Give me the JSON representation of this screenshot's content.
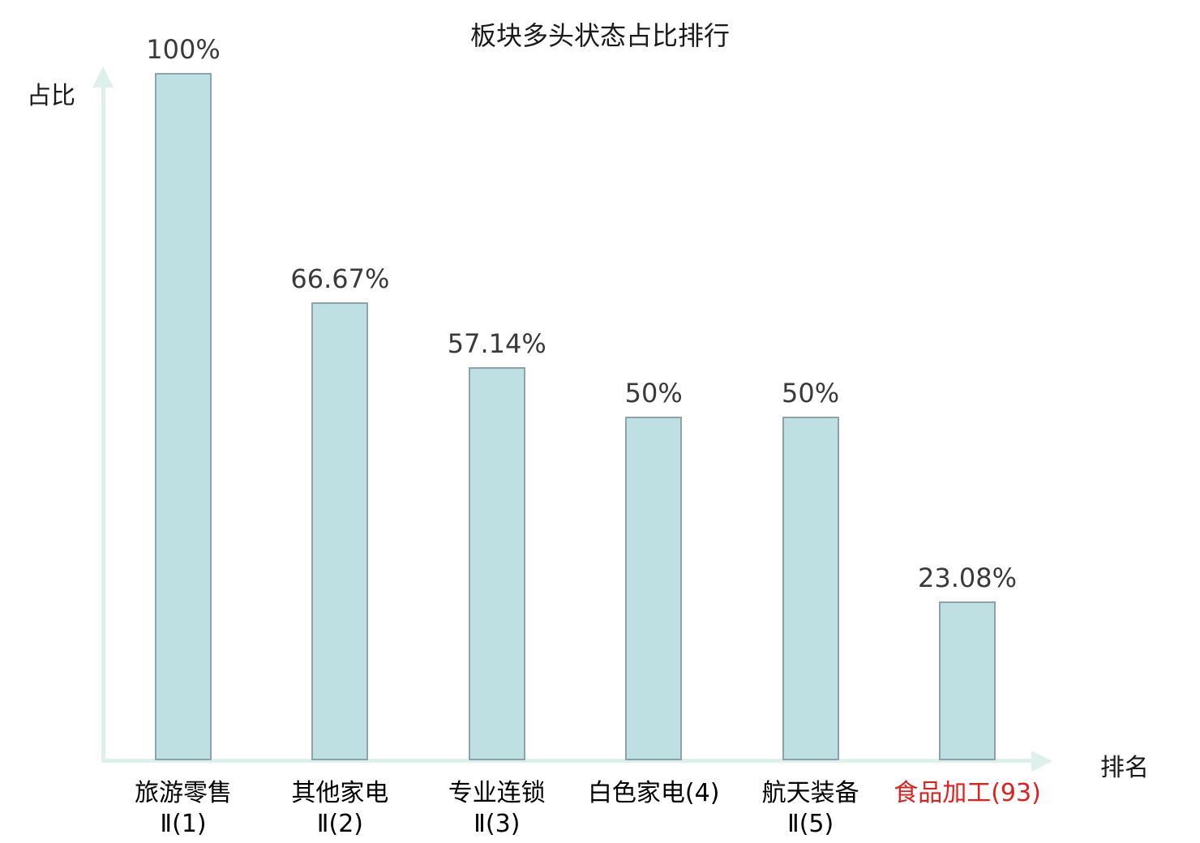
{
  "chart_data": {
    "type": "bar",
    "title": "板块多头状态占比排行",
    "ylabel": "占比",
    "xlabel": "排名",
    "ylim": [
      0,
      100
    ],
    "grid": false,
    "legend": null,
    "categories": [
      "旅游零售Ⅱ(1)",
      "其他家电Ⅱ(2)",
      "专业连锁Ⅱ(3)",
      "白色家电(4)",
      "航天装备Ⅱ(5)",
      "食品加工(93)"
    ],
    "values": [
      100,
      66.67,
      57.14,
      50,
      50,
      23.08
    ],
    "bars": [
      {
        "label_line1": "旅游零售",
        "label_line2": "Ⅱ(1)",
        "value": 100,
        "value_label": "100%",
        "highlight": false
      },
      {
        "label_line1": "其他家电",
        "label_line2": "Ⅱ(2)",
        "value": 66.67,
        "value_label": "66.67%",
        "highlight": false
      },
      {
        "label_line1": "专业连锁",
        "label_line2": "Ⅱ(3)",
        "value": 57.14,
        "value_label": "57.14%",
        "highlight": false
      },
      {
        "label_line1": "白色家电(4)",
        "label_line2": "",
        "value": 50,
        "value_label": "50%",
        "highlight": false
      },
      {
        "label_line1": "航天装备",
        "label_line2": "Ⅱ(5)",
        "value": 50,
        "value_label": "50%",
        "highlight": false
      },
      {
        "label_line1": "食品加工(93)",
        "label_line2": "",
        "value": 23.08,
        "value_label": "23.08%",
        "highlight": true
      }
    ],
    "colors": {
      "bar_fill": "#bee0e2",
      "bar_border": "#8ca4a8",
      "axis": "#dff0ec",
      "value_label": "#3a3a3a",
      "category_label": "#000000",
      "highlight": "#e01f1f",
      "background": "#ffffff"
    }
  }
}
